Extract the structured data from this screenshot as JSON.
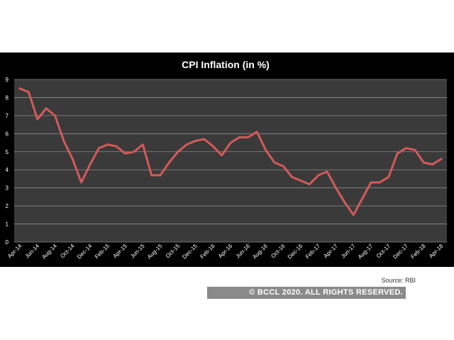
{
  "chart_data": {
    "type": "line",
    "title": "CPI Inflation (in %)",
    "xlabel": "",
    "ylabel": "",
    "ylim": [
      0,
      9
    ],
    "yticks": [
      0,
      1,
      2,
      3,
      4,
      5,
      6,
      7,
      8,
      9
    ],
    "grid": true,
    "legend": "none",
    "x": [
      "Apr-14",
      "May-14",
      "Jun-14",
      "Jul-14",
      "Aug-14",
      "Sep-14",
      "Oct-14",
      "Nov-14",
      "Dec-14",
      "Jan-15",
      "Feb-15",
      "Mar-15",
      "Apr-15",
      "May-15",
      "Jun-15",
      "Jul-15",
      "Aug-15",
      "Sep-15",
      "Oct-15",
      "Nov-15",
      "Dec-15",
      "Jan-16",
      "Feb-16",
      "Mar-16",
      "Apr-16",
      "May-16",
      "Jun-16",
      "Jul-16",
      "Aug-16",
      "Sep-16",
      "Oct-16",
      "Nov-16",
      "Dec-16",
      "Jan-17",
      "Feb-17",
      "Mar-17",
      "Apr-17",
      "May-17",
      "Jun-17",
      "Jul-17",
      "Aug-17",
      "Sep-17",
      "Oct-17",
      "Nov-17",
      "Dec-17",
      "Jan-18",
      "Feb-18",
      "Mar-18",
      "Apr-18"
    ],
    "xtick_labels": [
      "Apr-14",
      "Jun-14",
      "Aug-14",
      "Oct-14",
      "Dec-14",
      "Feb-15",
      "Apr-15",
      "Jun-15",
      "Aug-15",
      "Oct-15",
      "Dec-15",
      "Feb-16",
      "Apr-16",
      "Jun-16",
      "Aug-16",
      "Oct-16",
      "Dec-16",
      "Feb-17",
      "Apr-17",
      "Jun-17",
      "Aug-17",
      "Oct-17",
      "Dec-17",
      "Feb-18",
      "Apr-18"
    ],
    "series": [
      {
        "values": [
          8.5,
          8.3,
          6.8,
          7.4,
          7.0,
          5.6,
          4.6,
          3.3,
          4.3,
          5.2,
          5.4,
          5.3,
          4.9,
          5.0,
          5.4,
          3.7,
          3.7,
          4.4,
          5.0,
          5.4,
          5.6,
          5.7,
          5.3,
          4.8,
          5.5,
          5.8,
          5.8,
          6.1,
          5.1,
          4.4,
          4.2,
          3.6,
          3.4,
          3.2,
          3.7,
          3.9,
          3.0,
          2.2,
          1.5,
          2.4,
          3.3,
          3.3,
          3.6,
          4.9,
          5.2,
          5.1,
          4.4,
          4.3,
          4.6
        ],
        "color": "#d45a5a"
      }
    ]
  },
  "source": "Source: RBI",
  "copyright": "© BCCL 2020. ALL RIGHTS RESERVED.",
  "colors": {
    "background": "#000000",
    "plot_area": "#3a3a3a",
    "line": "#d45a5a",
    "grid": "#8c8c8c"
  }
}
